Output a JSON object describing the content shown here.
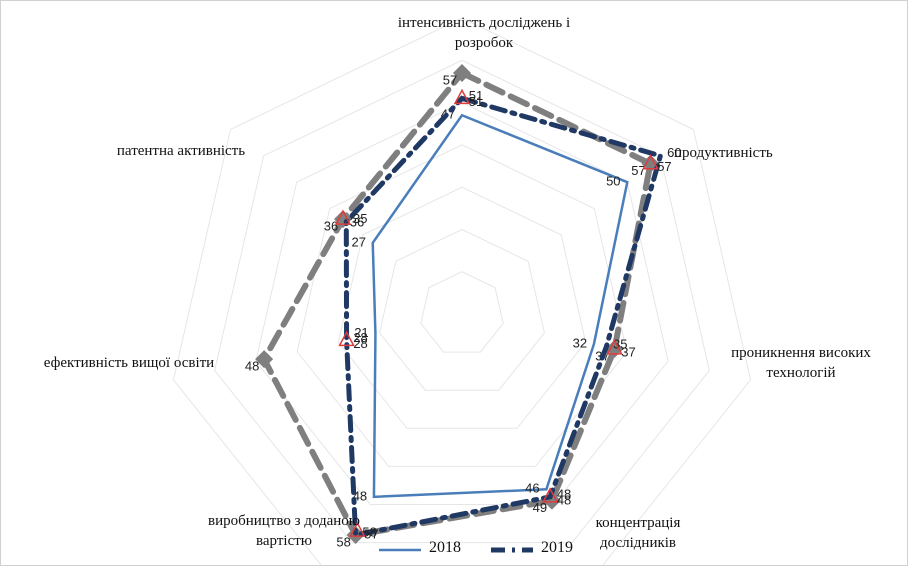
{
  "chart_data": {
    "type": "radar",
    "categories": [
      "інтенсивність досліджень і розробок",
      "продуктивність",
      "проникнення високих технологій",
      "концентрація дослідників",
      "виробництво з доданою вартістю",
      "ефективність вищої освіти",
      "патентна активність"
    ],
    "rlim": [
      0,
      70
    ],
    "rticks": [
      10,
      20,
      30,
      40,
      50,
      60,
      70
    ],
    "grid": true,
    "legend": "bottom",
    "series": [
      {
        "name": "2018",
        "color": "#4a7ebb",
        "line": "solid",
        "marker": "none",
        "values": [
          47,
          50,
          32,
          46,
          48,
          21,
          27
        ]
      },
      {
        "name": "2019",
        "color": "#1f3864",
        "line": "dashdot",
        "marker": "none",
        "values": [
          51,
          60,
          35,
          48,
          58,
          28,
          35
        ]
      },
      {
        "color": "#e03c3c",
        "line": "none",
        "marker": "triangle",
        "values": [
          51,
          57,
          37,
          48,
          57,
          28,
          36
        ]
      },
      {
        "color": "#7f7f7f",
        "line": "dash",
        "marker": "diamond",
        "values": [
          57,
          57,
          37,
          49,
          58,
          48,
          36
        ]
      }
    ]
  }
}
